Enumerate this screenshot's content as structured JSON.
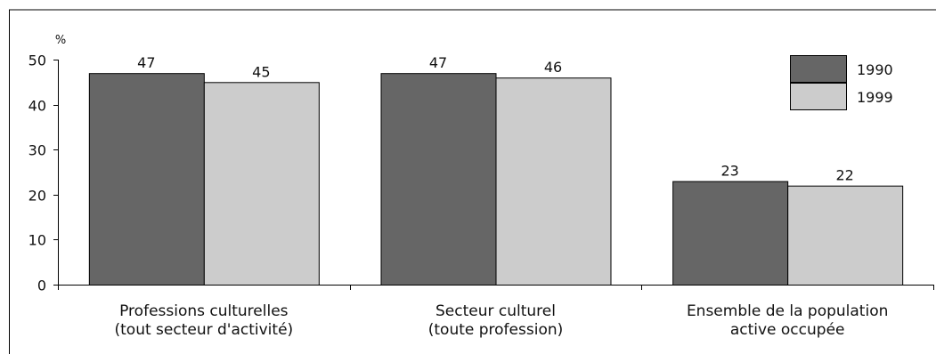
{
  "chart_data": {
    "type": "bar",
    "categories": [
      [
        "Professions culturelles",
        "(tout secteur d'activité)"
      ],
      [
        "Secteur culturel",
        "(toute profession)"
      ],
      [
        "Ensemble de la population",
        "active occupée"
      ]
    ],
    "series": [
      {
        "name": "1990",
        "values": [
          47,
          47,
          23
        ],
        "color": "#666666"
      },
      {
        "name": "1999",
        "values": [
          45,
          46,
          22
        ],
        "color": "#cccccc"
      }
    ],
    "data_labels": [
      [
        "47",
        "47",
        "23"
      ],
      [
        "45",
        "46",
        "22"
      ]
    ],
    "unit_label": "%",
    "yticks": [
      0,
      10,
      20,
      30,
      40,
      50
    ],
    "ylim": [
      0,
      50
    ],
    "grid": false,
    "legend_position": "top-right",
    "title": "",
    "xlabel": "",
    "ylabel": ""
  }
}
